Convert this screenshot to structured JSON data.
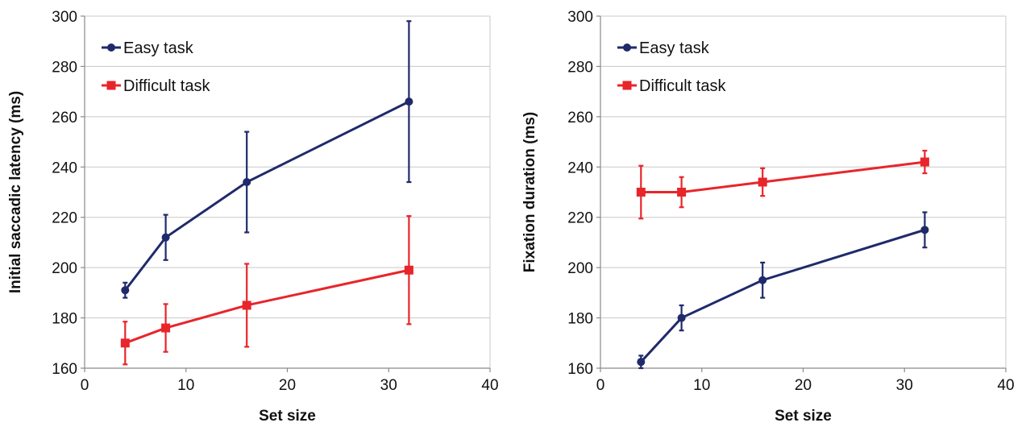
{
  "chart_data": [
    {
      "type": "line",
      "xlabel": "Set size",
      "ylabel": "Initial saccadic latency (ms)",
      "xlim": [
        0,
        40
      ],
      "ylim": [
        160,
        300
      ],
      "xticks": [
        0,
        10,
        20,
        30,
        40
      ],
      "yticks": [
        160,
        180,
        200,
        220,
        240,
        260,
        280,
        300
      ],
      "grid": "horizontal",
      "legend_position": "top-left",
      "series": [
        {
          "name": "Easy task",
          "color": "#1f2a6b",
          "marker": "circle",
          "x": [
            4,
            8,
            16,
            32
          ],
          "y": [
            191,
            212,
            234,
            266
          ],
          "error": [
            3,
            9,
            20,
            32
          ]
        },
        {
          "name": "Difficult task",
          "color": "#e8252a",
          "marker": "square",
          "x": [
            4,
            8,
            16,
            32
          ],
          "y": [
            170,
            176,
            185,
            199
          ],
          "error": [
            8.5,
            9.5,
            16.5,
            21.5
          ]
        }
      ]
    },
    {
      "type": "line",
      "xlabel": "Set size",
      "ylabel": "Fixation duration (ms)",
      "xlim": [
        0,
        40
      ],
      "ylim": [
        160,
        300
      ],
      "xticks": [
        0,
        10,
        20,
        30,
        40
      ],
      "yticks": [
        160,
        180,
        200,
        220,
        240,
        260,
        280,
        300
      ],
      "grid": "horizontal",
      "legend_position": "top-left",
      "series": [
        {
          "name": "Easy task",
          "color": "#1f2a6b",
          "marker": "circle",
          "x": [
            4,
            8,
            16,
            32
          ],
          "y": [
            162.5,
            180,
            195,
            215
          ],
          "error": [
            2.5,
            5,
            7,
            7
          ]
        },
        {
          "name": "Difficult task",
          "color": "#e8252a",
          "marker": "square",
          "x": [
            4,
            8,
            16,
            32
          ],
          "y": [
            230,
            230,
            234,
            242
          ],
          "error": [
            10.5,
            6,
            5.5,
            4.5
          ]
        }
      ]
    }
  ]
}
